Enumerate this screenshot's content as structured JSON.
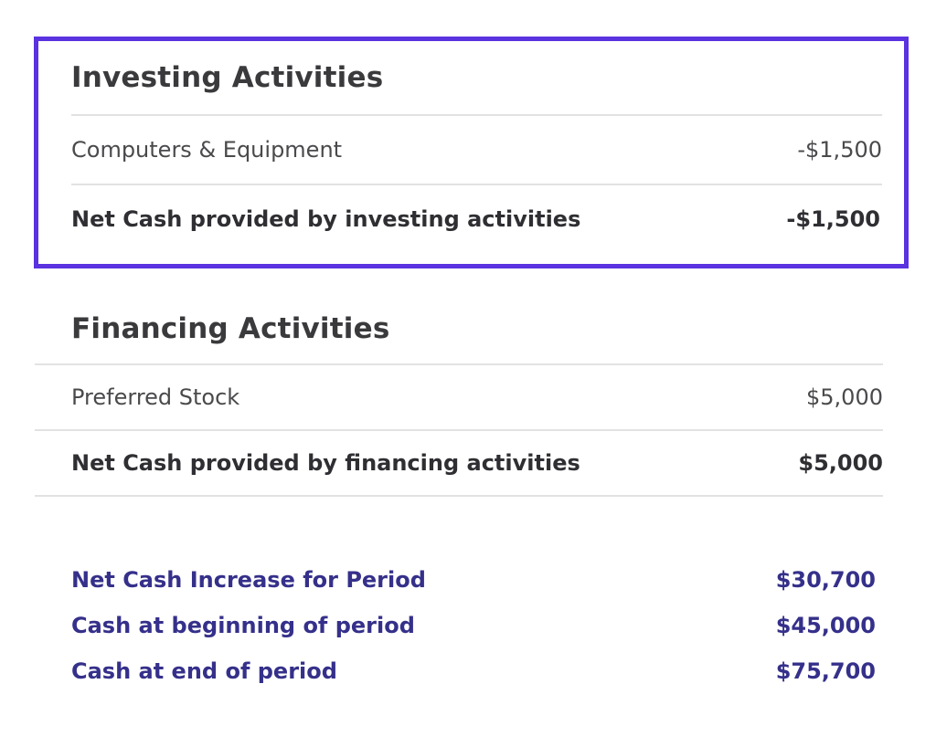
{
  "investing": {
    "title": "Investing Activities",
    "items": [
      {
        "label": "Computers & Equipment",
        "value": "-$1,500"
      }
    ],
    "total": {
      "label": "Net Cash provided by investing activities",
      "value": "-$1,500"
    }
  },
  "financing": {
    "title": "Financing Activities",
    "items": [
      {
        "label": "Preferred Stock",
        "value": "$5,000"
      }
    ],
    "total": {
      "label": "Net Cash provided by financing activities",
      "value": "$5,000"
    }
  },
  "summary": [
    {
      "label": "Net Cash Increase for Period",
      "value": "$30,700"
    },
    {
      "label": "Cash at beginning of period",
      "value": "$45,000"
    },
    {
      "label": "Cash at end of period",
      "value": "$75,700"
    }
  ],
  "colors": {
    "highlight_border": "#5a32e0",
    "summary_text": "#35308a",
    "divider": "#e2e2e2",
    "body_text": "#4a4a4d"
  }
}
